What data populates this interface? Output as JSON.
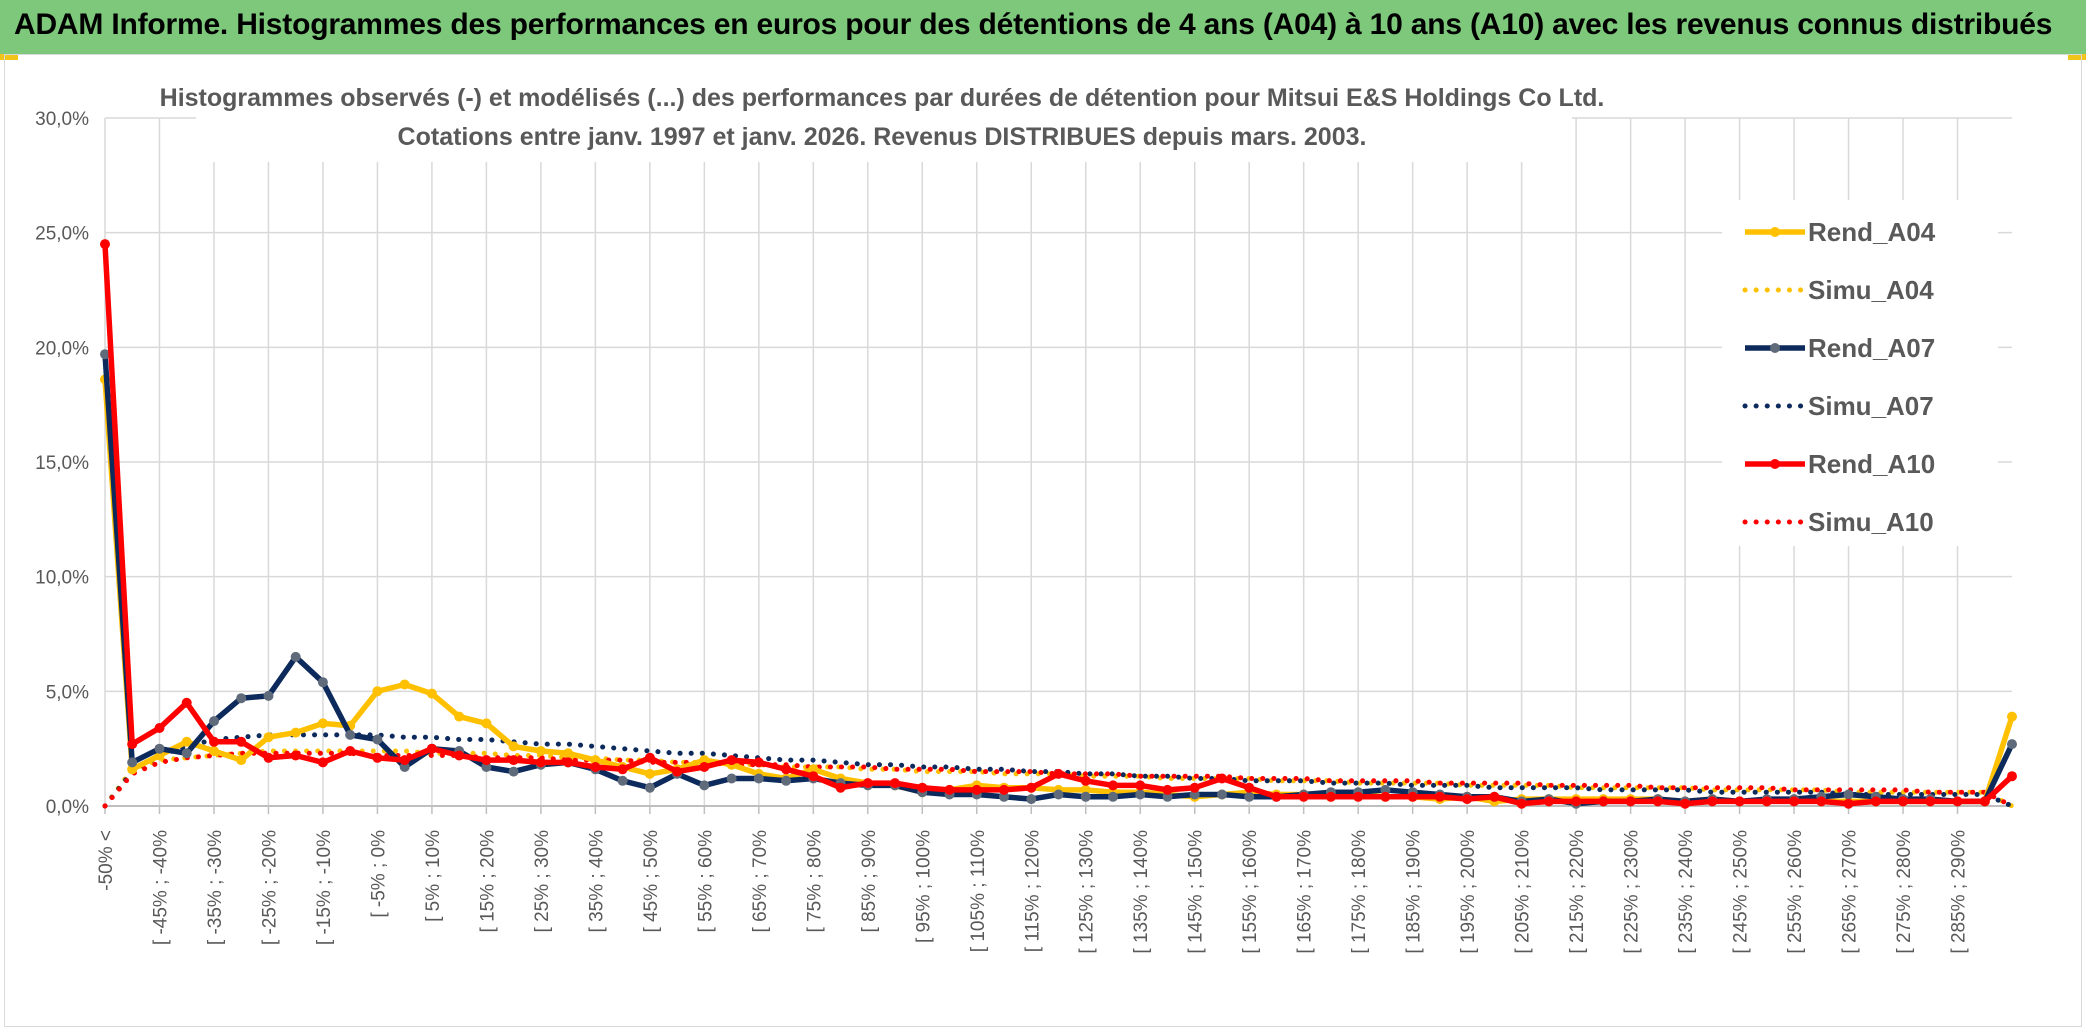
{
  "header": {
    "title": "ADAM Informe. Histogrammes des performances en euros pour des détentions de 4 ans (A04) à 10 ans (A10) avec les revenus connus distribués"
  },
  "colors": {
    "banner": "#7dc87b",
    "a04": "#ffc000",
    "a07": "#0d2a5c",
    "a10": "#ff0000",
    "grid": "#d9d9d9"
  },
  "chart_data": {
    "type": "line",
    "title_line1": "Histogrammes observés (-) et modélisés (...) des performances par durées de détention pour Mitsui E&S Holdings Co Ltd.",
    "title_line2": "Cotations entre janv. 1997 et janv. 2026.  Revenus DISTRIBUES depuis mars. 2003.",
    "ylim": [
      0,
      30
    ],
    "yticks": [
      "0,0%",
      "5,0%",
      "10,0%",
      "15,0%",
      "20,0%",
      "25,0%",
      "30,0%"
    ],
    "xtick_labels": [
      "-50% <",
      "[ -45% ; -40%",
      "[ -35% ; -30%",
      "[ -25% ; -20%",
      "[ -15% ; -10%",
      "[ -5% ; 0%",
      "[ 5% ; 10%",
      "[ 15% ; 20%",
      "[ 25% ; 30%",
      "[ 35% ; 40%",
      "[ 45% ; 50%",
      "[ 55% ; 60%",
      "[ 65% ; 70%",
      "[ 75% ; 80%",
      "[ 85% ; 90%",
      "[ 95% ; 100%",
      "[ 105% ; 110%",
      "[ 115% ; 120%",
      "[ 125% ; 130%",
      "[ 135% ; 140%",
      "[ 145% ; 150%",
      "[ 155% ; 160%",
      "[ 165% ; 170%",
      "[ 175% ; 180%",
      "[ 185% ; 190%",
      "[ 195% ; 200%",
      "[ 205% ; 210%",
      "[ 215% ; 220%",
      "[ 225% ; 230%",
      "[ 235% ; 240%",
      "[ 245% ; 250%",
      "[ 255% ; 260%",
      "[ 265% ; 270%",
      "[ 275% ; 280%",
      "[ 285% ; 290%"
    ],
    "n_points": 71,
    "legend_position": "right",
    "series": [
      {
        "name": "Rend_A04",
        "style": "solid",
        "color": "#ffc000",
        "values": [
          18.6,
          1.6,
          2.2,
          2.8,
          2.4,
          2.0,
          3.0,
          3.2,
          3.6,
          3.5,
          5.0,
          5.3,
          4.9,
          3.9,
          3.6,
          2.6,
          2.4,
          2.3,
          2.0,
          1.7,
          1.4,
          1.6,
          2.0,
          1.8,
          1.4,
          1.2,
          1.6,
          1.2,
          1.0,
          0.9,
          0.6,
          0.7,
          0.9,
          0.8,
          0.8,
          0.7,
          0.7,
          0.6,
          0.6,
          0.5,
          0.4,
          0.5,
          0.6,
          0.5,
          0.5,
          0.4,
          0.5,
          0.4,
          0.4,
          0.3,
          0.4,
          0.2,
          0.3,
          0.3,
          0.3,
          0.3,
          0.3,
          0.3,
          0.2,
          0.3,
          0.2,
          0.2,
          0.3,
          0.2,
          0.2,
          0.2,
          0.2,
          0.2,
          0.2,
          0.2,
          3.9
        ]
      },
      {
        "name": "Simu_A04",
        "style": "dotted",
        "color": "#ffc000",
        "values": [
          0.0,
          1.6,
          2.0,
          2.1,
          2.2,
          2.3,
          2.4,
          2.4,
          2.4,
          2.4,
          2.4,
          2.4,
          2.3,
          2.3,
          2.3,
          2.2,
          2.2,
          2.1,
          2.1,
          2.0,
          2.0,
          1.9,
          1.9,
          1.8,
          1.8,
          1.7,
          1.7,
          1.7,
          1.6,
          1.6,
          1.5,
          1.5,
          1.5,
          1.4,
          1.4,
          1.4,
          1.3,
          1.3,
          1.3,
          1.2,
          1.2,
          1.2,
          1.2,
          1.1,
          1.1,
          1.1,
          1.0,
          1.0,
          1.0,
          1.0,
          0.9,
          0.9,
          0.9,
          0.9,
          0.8,
          0.8,
          0.8,
          0.8,
          0.8,
          0.7,
          0.7,
          0.7,
          0.7,
          0.7,
          0.6,
          0.6,
          0.6,
          0.6,
          0.6,
          0.6,
          0.0
        ]
      },
      {
        "name": "Rend_A07",
        "style": "solid",
        "color": "#0d2a5c",
        "values": [
          19.7,
          1.9,
          2.5,
          2.3,
          3.7,
          4.7,
          4.8,
          6.5,
          5.4,
          3.1,
          2.9,
          1.7,
          2.5,
          2.4,
          1.7,
          1.5,
          1.8,
          1.9,
          1.6,
          1.1,
          0.8,
          1.4,
          0.9,
          1.2,
          1.2,
          1.1,
          1.2,
          1.0,
          0.9,
          0.9,
          0.6,
          0.5,
          0.5,
          0.4,
          0.3,
          0.5,
          0.4,
          0.4,
          0.5,
          0.4,
          0.5,
          0.5,
          0.4,
          0.4,
          0.5,
          0.6,
          0.6,
          0.7,
          0.6,
          0.5,
          0.4,
          0.4,
          0.2,
          0.3,
          0.1,
          0.2,
          0.2,
          0.3,
          0.2,
          0.3,
          0.2,
          0.3,
          0.3,
          0.4,
          0.5,
          0.4,
          0.3,
          0.3,
          0.2,
          0.2,
          2.7
        ]
      },
      {
        "name": "Simu_A07",
        "style": "dotted",
        "color": "#0d2a5c",
        "values": [
          0.0,
          1.5,
          2.2,
          2.6,
          2.9,
          3.0,
          3.1,
          3.1,
          3.1,
          3.1,
          3.1,
          3.0,
          3.0,
          2.9,
          2.9,
          2.8,
          2.7,
          2.7,
          2.6,
          2.5,
          2.4,
          2.3,
          2.3,
          2.2,
          2.1,
          2.0,
          2.0,
          1.9,
          1.8,
          1.8,
          1.7,
          1.7,
          1.6,
          1.6,
          1.5,
          1.5,
          1.4,
          1.4,
          1.3,
          1.3,
          1.2,
          1.2,
          1.1,
          1.1,
          1.1,
          1.0,
          1.0,
          1.0,
          0.9,
          0.9,
          0.9,
          0.8,
          0.8,
          0.8,
          0.8,
          0.7,
          0.7,
          0.7,
          0.7,
          0.6,
          0.6,
          0.6,
          0.6,
          0.6,
          0.5,
          0.5,
          0.5,
          0.5,
          0.5,
          0.5,
          0.0
        ]
      },
      {
        "name": "Rend_A10",
        "style": "solid",
        "color": "#ff0000",
        "values": [
          24.5,
          2.7,
          3.4,
          4.5,
          2.8,
          2.8,
          2.1,
          2.2,
          1.9,
          2.4,
          2.1,
          2.0,
          2.5,
          2.2,
          2.0,
          2.0,
          1.9,
          1.9,
          1.7,
          1.6,
          2.1,
          1.5,
          1.7,
          2.0,
          1.9,
          1.6,
          1.3,
          0.8,
          1.0,
          1.0,
          0.8,
          0.7,
          0.7,
          0.7,
          0.8,
          1.4,
          1.1,
          0.9,
          0.9,
          0.7,
          0.8,
          1.2,
          0.8,
          0.4,
          0.4,
          0.4,
          0.4,
          0.4,
          0.4,
          0.4,
          0.3,
          0.4,
          0.1,
          0.2,
          0.2,
          0.2,
          0.2,
          0.2,
          0.1,
          0.2,
          0.2,
          0.2,
          0.2,
          0.2,
          0.1,
          0.2,
          0.2,
          0.2,
          0.2,
          0.2,
          1.3
        ]
      },
      {
        "name": "Simu_A10",
        "style": "dotted",
        "color": "#ff0000",
        "values": [
          0.0,
          1.4,
          1.9,
          2.1,
          2.2,
          2.3,
          2.3,
          2.3,
          2.3,
          2.3,
          2.2,
          2.2,
          2.2,
          2.2,
          2.1,
          2.1,
          2.1,
          2.0,
          2.0,
          2.0,
          1.9,
          1.9,
          1.9,
          1.8,
          1.8,
          1.8,
          1.7,
          1.7,
          1.7,
          1.6,
          1.6,
          1.6,
          1.5,
          1.5,
          1.5,
          1.4,
          1.4,
          1.4,
          1.3,
          1.3,
          1.3,
          1.3,
          1.2,
          1.2,
          1.2,
          1.1,
          1.1,
          1.1,
          1.1,
          1.0,
          1.0,
          1.0,
          1.0,
          0.9,
          0.9,
          0.9,
          0.9,
          0.8,
          0.8,
          0.8,
          0.8,
          0.8,
          0.7,
          0.7,
          0.7,
          0.7,
          0.7,
          0.6,
          0.6,
          0.6,
          0.0
        ]
      }
    ]
  }
}
